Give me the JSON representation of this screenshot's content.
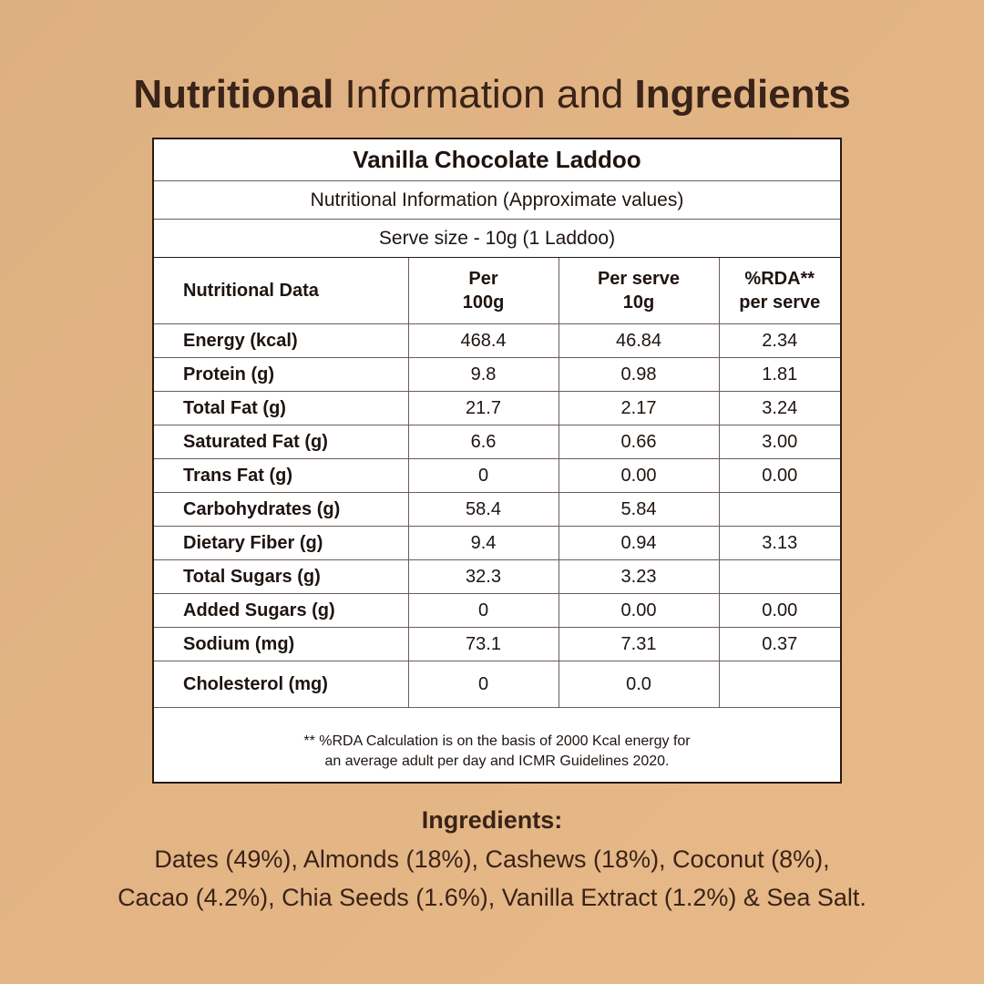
{
  "heading": {
    "part1": "Nutritional",
    "part2": " Information and ",
    "part3": "Ingredients"
  },
  "panel": {
    "product_name": "Vanilla Chocolate Laddoo",
    "subtitle": "Nutritional Information (Approximate values)",
    "serve_size": "Serve size - 10g (1 Laddoo)",
    "columns": {
      "label": "Nutritional Data",
      "per100_line1": "Per",
      "per100_line2": "100g",
      "perserve_line1": "Per serve",
      "perserve_line2": "10g",
      "rda_line1": "%RDA**",
      "rda_line2": "per serve"
    },
    "rows": [
      {
        "label": "Energy (kcal)",
        "per100": "468.4",
        "perserve": "46.84",
        "rda": "2.34"
      },
      {
        "label": "Protein (g)",
        "per100": "9.8",
        "perserve": "0.98",
        "rda": "1.81"
      },
      {
        "label": "Total Fat (g)",
        "per100": "21.7",
        "perserve": "2.17",
        "rda": "3.24"
      },
      {
        "label": "Saturated Fat (g)",
        "per100": "6.6",
        "perserve": "0.66",
        "rda": "3.00"
      },
      {
        "label": "Trans Fat (g)",
        "per100": "0",
        "perserve": "0.00",
        "rda": "0.00"
      },
      {
        "label": "Carbohydrates (g)",
        "per100": "58.4",
        "perserve": "5.84",
        "rda": ""
      },
      {
        "label": "Dietary Fiber (g)",
        "per100": "9.4",
        "perserve": "0.94",
        "rda": "3.13"
      },
      {
        "label": "Total Sugars (g)",
        "per100": "32.3",
        "perserve": "3.23",
        "rda": ""
      },
      {
        "label": "Added Sugars (g)",
        "per100": "0",
        "perserve": "0.00",
        "rda": "0.00"
      },
      {
        "label": "Sodium (mg)",
        "per100": "73.1",
        "perserve": "7.31",
        "rda": "0.37"
      },
      {
        "label": "Cholesterol (mg)",
        "per100": "0",
        "perserve": "0.0",
        "rda": ""
      }
    ],
    "note_line1": "** %RDA Calculation is on the basis of 2000 Kcal energy for",
    "note_line2": "an average adult per day and ICMR Guidelines 2020."
  },
  "ingredients": {
    "title": "Ingredients:",
    "line1": "Dates (49%), Almonds (18%), Cashews (18%), Coconut (8%),",
    "line2": "Cacao (4.2%), Chia Seeds (1.6%), Vanilla Extract (1.2%) & Sea Salt."
  }
}
